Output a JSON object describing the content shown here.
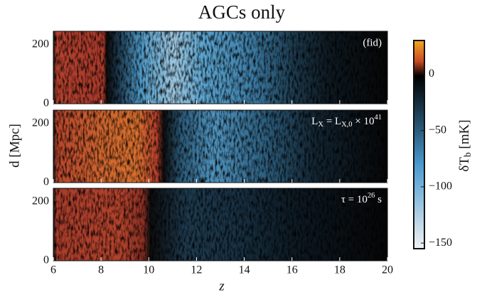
{
  "chart_data": {
    "type": "heatmap",
    "title": "AGCs only",
    "xlabel": "z",
    "ylabel": "d [Mpc]",
    "xlim": [
      6,
      20
    ],
    "xticks": [
      6,
      8,
      10,
      12,
      14,
      16,
      18,
      20
    ],
    "panels": [
      {
        "annotation": "(fid)",
        "ylim": [
          0,
          245
        ],
        "yticks": [
          0,
          200
        ]
      },
      {
        "annotation": "L_X = L_{X,0} × 10^{41}",
        "ylim": [
          0,
          245
        ],
        "yticks": [
          0,
          200
        ]
      },
      {
        "annotation": "τ = 10^{26} s",
        "ylim": [
          0,
          245
        ],
        "yticks": [
          0,
          200
        ]
      }
    ],
    "colorbar": {
      "label": "δT_b [mK]",
      "lim": [
        -155,
        30
      ],
      "ticks": [
        0,
        {
          "value": -50,
          "label": "−50"
        },
        {
          "value": -100,
          "label": "−100"
        },
        {
          "value": -150,
          "label": "−150"
        }
      ]
    }
  }
}
